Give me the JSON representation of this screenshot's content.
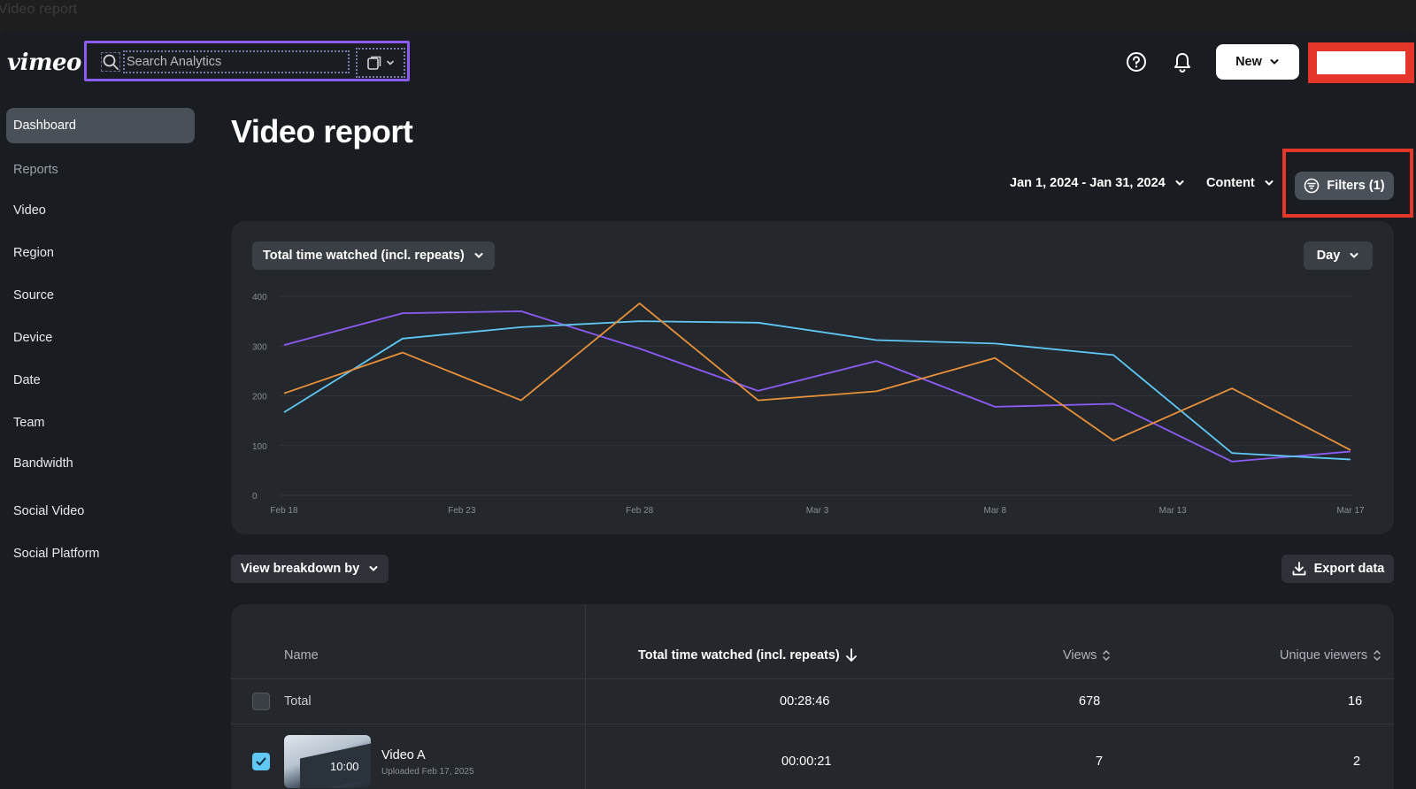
{
  "browser": {
    "tab_title": "Video report"
  },
  "header": {
    "logo": "vimeo",
    "search_placeholder": "Search Analytics",
    "new_label": "New"
  },
  "sidebar": {
    "active": "Dashboard",
    "reports_heading": "Reports",
    "items": [
      "Video",
      "Region",
      "Source",
      "Device",
      "Date",
      "Team",
      "Bandwidth",
      "Social Video",
      "Social Platform"
    ]
  },
  "main": {
    "title": "Video report",
    "date_range": "Jan 1, 2024 - Jan 31, 2024",
    "content_label": "Content",
    "filters_label": "Filters (1)",
    "metric_label": "Total time watched (incl. repeats)",
    "interval_label": "Day",
    "breakdown_label": "View breakdown by",
    "export_label": "Export data"
  },
  "chart_data": {
    "type": "line",
    "x": [
      "Feb 18",
      "Feb 23",
      "Feb 28",
      "Mar 3",
      "Mar 8",
      "Mar 13",
      "Mar 17"
    ],
    "x_tick_labels": [
      "Feb 18",
      "Feb 23",
      "Feb 28",
      "Mar 3",
      "Mar 8",
      "Mar 13",
      "Mar 17"
    ],
    "y_ticks": [
      0,
      100,
      200,
      300,
      400
    ],
    "ylim": [
      0,
      400
    ],
    "grid": true,
    "series": [
      {
        "color": "#8b5cf6",
        "values": [
          [
            0,
            302
          ],
          [
            1,
            366
          ],
          [
            2,
            370
          ],
          [
            3,
            295
          ],
          [
            4,
            210
          ],
          [
            5,
            270
          ],
          [
            6,
            178
          ],
          [
            7,
            184
          ],
          [
            8,
            68
          ],
          [
            9,
            88
          ]
        ]
      },
      {
        "color": "#5fc8f5",
        "values": [
          [
            0,
            167
          ],
          [
            1,
            315
          ],
          [
            2,
            338
          ],
          [
            3,
            350
          ],
          [
            4,
            347
          ],
          [
            5,
            312
          ],
          [
            6,
            305
          ],
          [
            7,
            282
          ],
          [
            8,
            85
          ],
          [
            9,
            72
          ]
        ]
      },
      {
        "color": "#e8913a",
        "values": [
          [
            0,
            205
          ],
          [
            1,
            287
          ],
          [
            2,
            191
          ],
          [
            3,
            386
          ],
          [
            4,
            191
          ],
          [
            5,
            209
          ],
          [
            6,
            276
          ],
          [
            7,
            110
          ],
          [
            8,
            215
          ],
          [
            9,
            91
          ]
        ]
      }
    ]
  },
  "table": {
    "headers": {
      "name": "Name",
      "time": "Total time watched (incl. repeats)",
      "views": "Views",
      "unique": "Unique viewers"
    },
    "total": {
      "name": "Total",
      "time": "00:28:46",
      "views": "678",
      "unique": "16"
    },
    "rows": [
      {
        "name": "Video A",
        "uploaded": "Uploaded Feb 17, 2025",
        "duration": "10:00",
        "time": "00:00:21",
        "views": "7",
        "unique": "2",
        "checked": true
      }
    ]
  }
}
